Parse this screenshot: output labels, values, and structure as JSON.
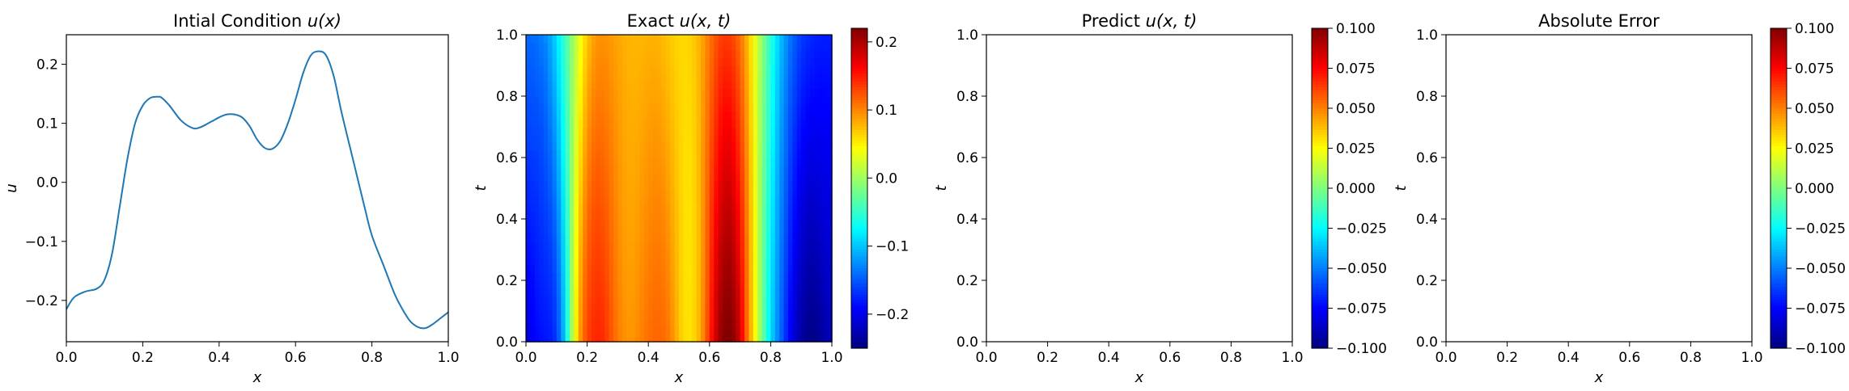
{
  "chart_data": [
    {
      "type": "line",
      "title": "Intial Condition u(x)",
      "title_plain": "Intial Condition ",
      "title_math": "u(x)",
      "xlabel": "x",
      "ylabel": "u",
      "xlim": [
        0,
        1
      ],
      "ylim": [
        -0.27,
        0.25
      ],
      "xticks": [
        0,
        0.2,
        0.4,
        0.6,
        0.8,
        1.0
      ],
      "xtick_labels": [
        "0.0",
        "0.2",
        "0.4",
        "0.6",
        "0.8",
        "1.0"
      ],
      "yticks": [
        -0.2,
        -0.1,
        0.0,
        0.1,
        0.2
      ],
      "ytick_labels": [
        "−0.2",
        "−0.1",
        "0.0",
        "0.1",
        "0.2"
      ],
      "line_color": "#1f77b4",
      "series": [
        {
          "x": [
            0.0,
            0.02,
            0.05,
            0.08,
            0.1,
            0.12,
            0.14,
            0.16,
            0.18,
            0.2,
            0.22,
            0.24,
            0.25,
            0.27,
            0.3,
            0.33,
            0.35,
            0.38,
            0.4,
            0.42,
            0.44,
            0.46,
            0.48,
            0.5,
            0.52,
            0.54,
            0.56,
            0.58,
            0.6,
            0.62,
            0.64,
            0.66,
            0.68,
            0.7,
            0.72,
            0.75,
            0.78,
            0.8,
            0.83,
            0.86,
            0.88,
            0.9,
            0.92,
            0.94,
            0.96,
            0.98,
            1.0
          ],
          "y": [
            -0.215,
            -0.195,
            -0.185,
            -0.18,
            -0.165,
            -0.12,
            -0.04,
            0.04,
            0.1,
            0.13,
            0.143,
            0.145,
            0.143,
            0.13,
            0.105,
            0.092,
            0.093,
            0.103,
            0.11,
            0.115,
            0.115,
            0.11,
            0.095,
            0.072,
            0.058,
            0.057,
            0.07,
            0.1,
            0.14,
            0.185,
            0.215,
            0.222,
            0.215,
            0.18,
            0.12,
            0.04,
            -0.04,
            -0.09,
            -0.14,
            -0.19,
            -0.215,
            -0.235,
            -0.245,
            -0.247,
            -0.24,
            -0.23,
            -0.22
          ]
        }
      ]
    },
    {
      "type": "heatmap",
      "title": "Exact u(x, t)",
      "title_plain": "Exact ",
      "title_math": "u(x, t)",
      "xlabel": "x",
      "ylabel": "t",
      "xlim": [
        0,
        1
      ],
      "ylim": [
        0,
        1
      ],
      "xtick_labels": [
        "0.0",
        "0.2",
        "0.4",
        "0.6",
        "0.8",
        "1.0"
      ],
      "ytick_labels": [
        "0.0",
        "0.2",
        "0.4",
        "0.6",
        "0.8",
        "1.0"
      ],
      "colormap": "jet",
      "colorbar_range": [
        -0.25,
        0.22
      ],
      "colorbar_ticks": [
        -0.2,
        -0.1,
        0.0,
        0.1,
        0.2
      ],
      "colorbar_tick_labels": [
        "−0.2",
        "−0.1",
        "0.0",
        "0.1",
        "0.2"
      ]
    },
    {
      "type": "heatmap",
      "title": "Predict u(x, t)",
      "title_plain": "Predict ",
      "title_math": "u(x, t)",
      "xlabel": "x",
      "ylabel": "t",
      "xlim": [
        0,
        1
      ],
      "ylim": [
        0,
        1
      ],
      "xtick_labels": [
        "0.0",
        "0.2",
        "0.4",
        "0.6",
        "0.8",
        "1.0"
      ],
      "ytick_labels": [
        "0.0",
        "0.2",
        "0.4",
        "0.6",
        "0.8",
        "1.0"
      ],
      "colormap": "jet",
      "values": "empty",
      "colorbar_range": [
        -0.1,
        0.1
      ],
      "colorbar_ticks": [
        -0.1,
        -0.075,
        -0.05,
        -0.025,
        0.0,
        0.025,
        0.05,
        0.075,
        0.1
      ],
      "colorbar_tick_labels": [
        "−0.100",
        "−0.075",
        "−0.050",
        "−0.025",
        "0.000",
        "0.025",
        "0.050",
        "0.075",
        "0.100"
      ]
    },
    {
      "type": "heatmap",
      "title": "Absolute Error",
      "title_plain": "Absolute Error",
      "title_math": "",
      "xlabel": "x",
      "ylabel": "t",
      "xlim": [
        0,
        1
      ],
      "ylim": [
        0,
        1
      ],
      "xtick_labels": [
        "0.0",
        "0.2",
        "0.4",
        "0.6",
        "0.8",
        "1.0"
      ],
      "ytick_labels": [
        "0.0",
        "0.2",
        "0.4",
        "0.6",
        "0.8",
        "1.0"
      ],
      "colormap": "jet",
      "values": "empty",
      "colorbar_range": [
        -0.1,
        0.1
      ],
      "colorbar_ticks": [
        -0.1,
        -0.075,
        -0.05,
        -0.025,
        0.0,
        0.025,
        0.05,
        0.075,
        0.1
      ],
      "colorbar_tick_labels": [
        "−0.100",
        "−0.075",
        "−0.050",
        "−0.025",
        "0.000",
        "0.025",
        "0.050",
        "0.075",
        "0.100"
      ]
    }
  ]
}
